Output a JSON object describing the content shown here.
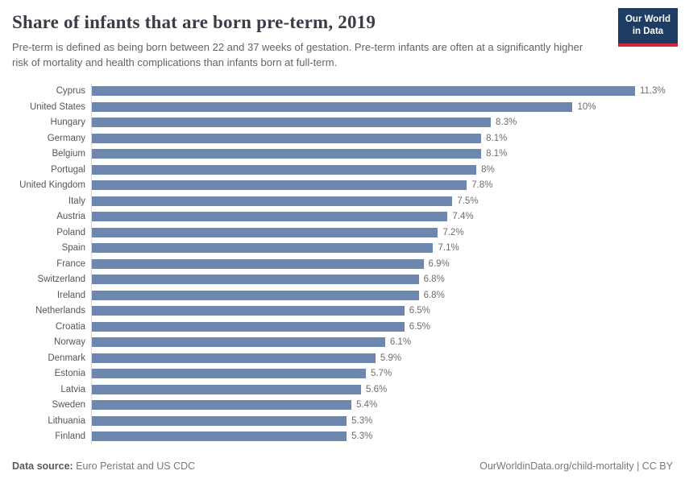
{
  "header": {
    "title": "Share of infants that are born pre-term, 2019",
    "subtitle": "Pre-term is defined as being born between 22 and 37 weeks of gestation. Pre-term infants are often at a significantly higher risk of mortality and health complications than infants born at full-term.",
    "logo": {
      "line1": "Our World",
      "line2": "in Data"
    }
  },
  "colors": {
    "bar": "#6e87ae",
    "axis_line": "#d9d9d9",
    "logo_navy": "#1d3d63",
    "logo_red": "#ce2a3a",
    "title_text": "#383d46",
    "subtitle_text": "#646464"
  },
  "chart_data": {
    "type": "bar",
    "orientation": "horizontal",
    "title": "Share of infants that are born pre-term, 2019",
    "xlabel": "",
    "ylabel": "",
    "unit": "%",
    "xlim": [
      0,
      11.3
    ],
    "grid": false,
    "legend": false,
    "categories": [
      "Cyprus",
      "United States",
      "Hungary",
      "Germany",
      "Belgium",
      "Portugal",
      "United Kingdom",
      "Italy",
      "Austria",
      "Poland",
      "Spain",
      "France",
      "Switzerland",
      "Ireland",
      "Netherlands",
      "Croatia",
      "Norway",
      "Denmark",
      "Estonia",
      "Latvia",
      "Sweden",
      "Lithuania",
      "Finland"
    ],
    "values": [
      11.3,
      10,
      8.3,
      8.1,
      8.1,
      8,
      7.8,
      7.5,
      7.4,
      7.2,
      7.1,
      6.9,
      6.8,
      6.8,
      6.5,
      6.5,
      6.1,
      5.9,
      5.7,
      5.6,
      5.4,
      5.3,
      5.3
    ],
    "value_labels": [
      "11.3%",
      "10%",
      "8.3%",
      "8.1%",
      "8.1%",
      "8%",
      "7.8%",
      "7.5%",
      "7.4%",
      "7.2%",
      "7.1%",
      "6.9%",
      "6.8%",
      "6.8%",
      "6.5%",
      "6.5%",
      "6.1%",
      "5.9%",
      "5.7%",
      "5.6%",
      "5.4%",
      "5.3%",
      "5.3%"
    ]
  },
  "footer": {
    "source_label": "Data source:",
    "source_text": " Euro Peristat and US CDC",
    "right_text": "OurWorldinData.org/child-mortality | CC BY"
  }
}
